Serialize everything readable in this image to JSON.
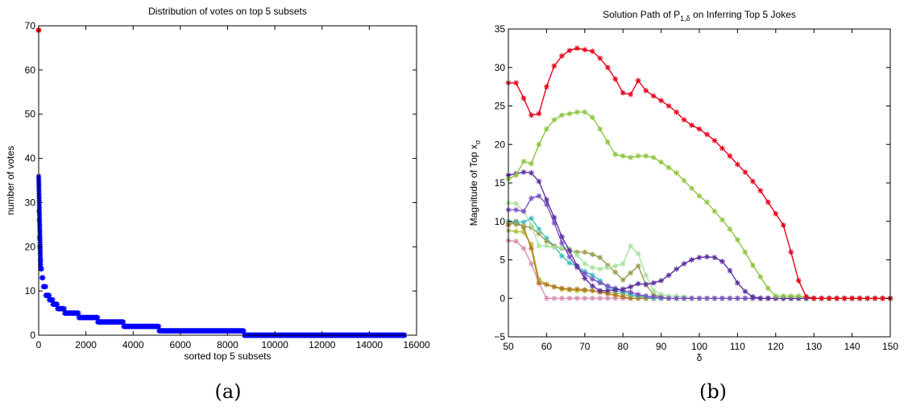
{
  "chart_data": [
    {
      "type": "scatter",
      "title": "Distribution of votes on top 5 subsets",
      "xlabel": "sorted top 5 subsets",
      "ylabel": "number of votes",
      "xlim": [
        0,
        16000
      ],
      "ylim": [
        0,
        70
      ],
      "xticks": [
        "0",
        "2000",
        "4000",
        "6000",
        "8000",
        "10000",
        "12000",
        "14000",
        "16000"
      ],
      "yticks": [
        "0",
        "10",
        "20",
        "30",
        "40",
        "50",
        "60",
        "70"
      ],
      "caption": "(a)",
      "marker": "*",
      "series_color": "#0000ff",
      "highlight_color": "#ff0000",
      "highlight_point": {
        "x": 0,
        "y": 69
      },
      "curve": [
        [
          1,
          36
        ],
        [
          4,
          35
        ],
        [
          8,
          34
        ],
        [
          15,
          28
        ],
        [
          25,
          26
        ],
        [
          35,
          22
        ],
        [
          50,
          20
        ],
        [
          70,
          17
        ],
        [
          100,
          15
        ],
        [
          140,
          13
        ],
        [
          200,
          11
        ],
        [
          300,
          9
        ],
        [
          450,
          8
        ],
        [
          600,
          7
        ],
        [
          800,
          6
        ],
        [
          1100,
          5
        ],
        [
          1700,
          4
        ],
        [
          2500,
          3
        ],
        [
          3600,
          2
        ],
        [
          5100,
          1
        ],
        [
          8700,
          0
        ],
        [
          15500,
          0
        ]
      ]
    },
    {
      "type": "line",
      "title": "Solution Path of P",
      "title_sub": "1,δ",
      "title_tail": " on Inferring Top 5 Jokes",
      "xlabel": "δ",
      "ylabel": "Magnitude of Top x",
      "ylabel_sub": "σ",
      "xlim": [
        50,
        150
      ],
      "ylim": [
        -5,
        35
      ],
      "xticks": [
        "50",
        "60",
        "70",
        "80",
        "90",
        "100",
        "110",
        "120",
        "130",
        "140",
        "150"
      ],
      "yticks": [
        "−5",
        "0",
        "5",
        "10",
        "15",
        "20",
        "25",
        "30",
        "35"
      ],
      "caption": "(b)",
      "marker": "*",
      "x": [
        50,
        52,
        54,
        56,
        58,
        60,
        62,
        64,
        66,
        68,
        70,
        72,
        74,
        76,
        78,
        80,
        82,
        84,
        86,
        88,
        90,
        92,
        94,
        96,
        98,
        100,
        102,
        104,
        106,
        108,
        110,
        112,
        114,
        116,
        118,
        120,
        122,
        124,
        126,
        128,
        130,
        132,
        134,
        136,
        138,
        140,
        142,
        144,
        146,
        148,
        150
      ],
      "series": [
        {
          "color": "#e8001c",
          "values": [
            28,
            28,
            26,
            23.8,
            24,
            27.5,
            30.2,
            31.5,
            32.2,
            32.5,
            32.3,
            32.1,
            31.2,
            30,
            28.5,
            26.7,
            26.5,
            28.3,
            27,
            26.3,
            25.7,
            25,
            24.2,
            23.2,
            22.5,
            22,
            21.3,
            20.5,
            19.5,
            18.5,
            17.4,
            16.4,
            15.2,
            14,
            12.5,
            11,
            9.5,
            6,
            2.3,
            0.2,
            0,
            0,
            0,
            0,
            0,
            0,
            0,
            0,
            0,
            0,
            0
          ]
        },
        {
          "color": "#8cc63f",
          "values": [
            15.5,
            16,
            17.8,
            17.5,
            20,
            22,
            23.2,
            23.8,
            24,
            24.2,
            24.2,
            23.5,
            22,
            20.3,
            18.7,
            18.5,
            18.3,
            18.5,
            18.5,
            18.3,
            17.7,
            17,
            16.3,
            15.3,
            14.3,
            13.3,
            12.5,
            11.3,
            10.2,
            9,
            7.6,
            6,
            4.3,
            2.8,
            1.3,
            0.3,
            0.3,
            0.3,
            0.3,
            0.2,
            0,
            0,
            0,
            0,
            0,
            0,
            0,
            0,
            0,
            0,
            0
          ]
        },
        {
          "color": "#5c2fa0",
          "values": [
            16,
            16.2,
            16.4,
            16.3,
            15.2,
            12.8,
            10.5,
            8,
            6.2,
            4.2,
            2.6,
            1.6,
            1,
            1,
            1.1,
            1.2,
            1.5,
            1.9,
            1.8,
            2,
            2.3,
            3,
            3.8,
            4.5,
            5,
            5.3,
            5.4,
            5.3,
            4.8,
            3.6,
            2,
            0.9,
            0.2,
            0,
            0,
            0,
            0,
            0,
            0,
            0,
            0,
            0,
            0,
            0,
            0,
            0,
            0,
            0,
            0,
            0,
            0
          ]
        },
        {
          "color": "#7b52c7",
          "values": [
            11.5,
            11.5,
            11.3,
            13,
            13.3,
            12.2,
            9.8,
            7.2,
            5.4,
            4,
            3.2,
            2.5,
            2,
            1.6,
            1.3,
            1,
            0.8,
            0.5,
            0.3,
            0.2,
            0.1,
            0,
            0,
            0,
            0,
            0,
            0,
            0,
            0,
            0,
            0,
            0,
            0,
            0,
            0,
            0,
            0,
            0,
            0,
            0,
            0,
            0,
            0,
            0,
            0,
            0,
            0,
            0,
            0,
            0,
            0
          ]
        },
        {
          "color": "#a7e3a1",
          "values": [
            12.4,
            12.3,
            11.3,
            9.5,
            6.8,
            6.8,
            6.6,
            6.6,
            6.5,
            5.6,
            4.5,
            4,
            3.8,
            4,
            4.2,
            4.5,
            6.8,
            5.8,
            3,
            1,
            0.5,
            0.3,
            0.3,
            0.2,
            0,
            0,
            0,
            0,
            0,
            0,
            0,
            0,
            0,
            0,
            0,
            0,
            0,
            0,
            0,
            0,
            0,
            0,
            0,
            0,
            0,
            0,
            0,
            0,
            0,
            0,
            0
          ]
        },
        {
          "color": "#9b9b50",
          "values": [
            9.8,
            9.6,
            9.4,
            9.2,
            8.4,
            7.4,
            6.8,
            6.5,
            6.2,
            6,
            6,
            5.7,
            5.3,
            4.3,
            3.4,
            2.4,
            3.3,
            4.2,
            1.8,
            0.5,
            0.2,
            0,
            0,
            0,
            0,
            0,
            0,
            0,
            0,
            0,
            0,
            0,
            0,
            0,
            0,
            0,
            0,
            0,
            0,
            0,
            0,
            0,
            0,
            0,
            0,
            0,
            0,
            0,
            0,
            0,
            0
          ]
        },
        {
          "color": "#3fbfbf",
          "values": [
            10,
            9.9,
            9.9,
            10.4,
            9,
            7.8,
            6.8,
            5.5,
            4.6,
            4.2,
            3.5,
            3,
            2.3,
            1.5,
            1,
            0.8,
            0.5,
            0.3,
            0.2,
            0,
            0,
            0,
            0,
            0,
            0,
            0,
            0,
            0,
            0,
            0,
            0,
            0,
            0,
            0,
            0,
            0,
            0,
            0,
            0,
            0,
            0,
            0,
            0,
            0,
            0,
            0,
            0,
            0,
            0,
            0,
            0
          ]
        },
        {
          "color": "#b07a20",
          "values": [
            9.5,
            10,
            9.2,
            6.5,
            2,
            1.8,
            1.5,
            1.3,
            1.2,
            1.2,
            1.1,
            1,
            0.8,
            0.6,
            0.4,
            0.2,
            0,
            0,
            0,
            0,
            0,
            0,
            0,
            0,
            0,
            0,
            0,
            0,
            0,
            0,
            0,
            0,
            0,
            0,
            0,
            0,
            0,
            0,
            0,
            0,
            0,
            0,
            0,
            0,
            0,
            0,
            0,
            0,
            0,
            0,
            0
          ]
        },
        {
          "color": "#b5bd3c",
          "values": [
            8.8,
            8.7,
            8.6,
            7,
            2.5,
            1.8,
            1.5,
            1.2,
            1.1,
            1,
            1,
            1,
            0.9,
            0.8,
            0.7,
            0.5,
            0.3,
            0.2,
            0,
            0,
            0,
            0,
            0,
            0,
            0,
            0,
            0,
            0,
            0,
            0,
            0,
            0,
            0,
            0,
            0,
            0,
            0,
            0,
            0,
            0,
            0,
            0,
            0,
            0,
            0,
            0,
            0,
            0,
            0,
            0,
            0
          ]
        },
        {
          "color": "#d98fb0",
          "values": [
            7.5,
            7.4,
            6.5,
            4.5,
            2,
            0,
            0,
            0,
            0,
            0,
            0,
            0,
            0,
            0,
            0,
            0,
            0,
            0,
            0,
            0,
            0,
            0,
            0,
            0,
            0,
            0,
            0,
            0,
            0,
            0,
            0,
            0,
            0,
            0,
            0,
            0,
            0,
            0,
            0,
            0,
            0,
            0,
            0,
            0,
            0,
            0,
            0,
            0,
            0,
            0,
            0
          ]
        }
      ]
    }
  ]
}
